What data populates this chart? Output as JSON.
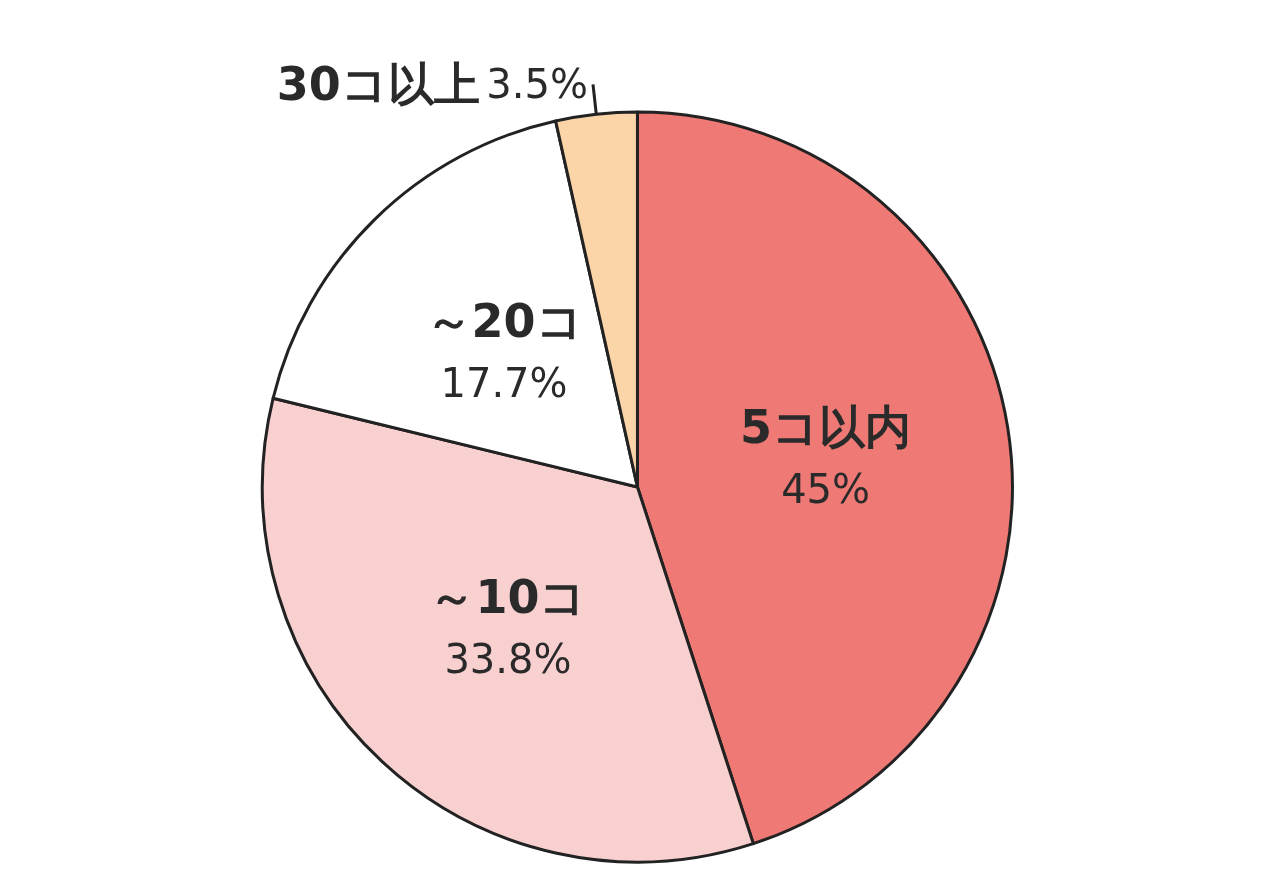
{
  "chart_data": {
    "type": "pie",
    "categories": [
      "5コ以内",
      "～10コ",
      "～20コ",
      "30コ以上"
    ],
    "values": [
      45,
      33.8,
      17.7,
      3.5
    ],
    "colors": [
      "#ef7a75",
      "#f9d0d0",
      "#ffffff",
      "#fbd5a8"
    ],
    "value_labels": [
      "45%",
      "33.8%",
      "17.7%",
      "3.5%"
    ]
  }
}
